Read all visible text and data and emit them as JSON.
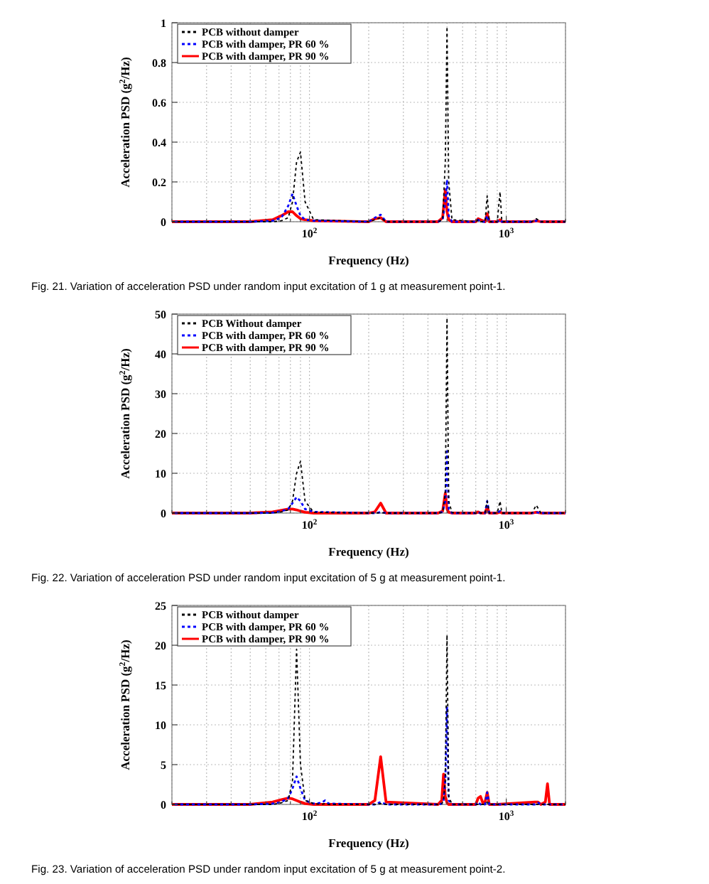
{
  "chart_data": [
    {
      "type": "line",
      "xlabel": "Frequency (Hz)",
      "ylabel": "Acceleration PSD (g$^{2}$/Hz)",
      "annotations": [
        "Fig. 21. Variation of acceleration PSD under random input excitation of 1 g at measurement point-1."
      ],
      "log": "x",
      "grid": true,
      "legend": "top left",
      "xlim": [
        20,
        2000
      ],
      "ylim": [
        0,
        1
      ],
      "xticks": [
        {
          "value": 20,
          "label": null
        },
        {
          "value": 30,
          "label": null
        },
        {
          "value": 40,
          "label": null
        },
        {
          "value": 50,
          "label": null
        },
        {
          "value": 60,
          "label": null
        },
        {
          "value": 70,
          "label": null
        },
        {
          "value": 80,
          "label": null
        },
        {
          "value": 90,
          "label": null
        },
        {
          "value": 100,
          "label": "10$^{2}$"
        },
        {
          "value": 200,
          "label": null
        },
        {
          "value": 300,
          "label": null
        },
        {
          "value": 400,
          "label": null
        },
        {
          "value": 500,
          "label": null
        },
        {
          "value": 600,
          "label": null
        },
        {
          "value": 700,
          "label": null
        },
        {
          "value": 800,
          "label": null
        },
        {
          "value": 900,
          "label": null
        },
        {
          "value": 1000,
          "label": "10$^{3}$"
        },
        {
          "value": 2000,
          "label": null
        }
      ],
      "yticks": [
        0,
        0.2,
        0.4,
        0.6,
        0.8,
        1
      ],
      "x": [
        20,
        50,
        65,
        72,
        78,
        82,
        86,
        90,
        95,
        105,
        200,
        215,
        230,
        245,
        450,
        475,
        490,
        500,
        510,
        530,
        700,
        720,
        740,
        780,
        800,
        820,
        900,
        930,
        950,
        1350,
        1420,
        1500,
        2000
      ],
      "series": [
        {
          "name": "PCB without damper",
          "color": "#000000",
          "line_style": "dashed",
          "values": [
            0,
            0,
            0,
            0.005,
            0.02,
            0.1,
            0.3,
            0.35,
            0.1,
            0.01,
            0,
            0.01,
            0.02,
            0,
            0,
            0.01,
            0.3,
            0.98,
            0.2,
            0.01,
            0,
            0.01,
            0,
            0,
            0.13,
            0,
            0,
            0.15,
            0,
            0,
            0.015,
            0,
            0
          ]
        },
        {
          "name": "PCB with damper, PR 60 %",
          "color": "#0000ff",
          "line_style": "dashed",
          "values": [
            0,
            0,
            0.005,
            0.02,
            0.08,
            0.14,
            0.08,
            0.03,
            0.01,
            0.005,
            0,
            0.02,
            0.035,
            0,
            0,
            0.01,
            0.1,
            0.21,
            0.03,
            0,
            0,
            0.01,
            0,
            0,
            0.03,
            0,
            0,
            0.01,
            0,
            0,
            0.005,
            0,
            0
          ]
        },
        {
          "name": "PCB with damper, PR 90 %",
          "color": "#ff0000",
          "line_style": "solid",
          "values": [
            0,
            0,
            0.01,
            0.03,
            0.05,
            0.05,
            0.03,
            0.015,
            0.01,
            0.005,
            0,
            0.015,
            0.02,
            0,
            0,
            0.02,
            0.16,
            0.05,
            0.01,
            0,
            0,
            0.015,
            0.01,
            0,
            0.04,
            0,
            0,
            0.01,
            0,
            0,
            0.005,
            0,
            0
          ]
        }
      ]
    },
    {
      "type": "line",
      "xlabel": "Frequency (Hz)",
      "ylabel": "Acceleration PSD (g$^{2}$/Hz)",
      "annotations": [
        "Fig. 22. Variation of acceleration PSD under random input excitation of 5 g at measurement point-1."
      ],
      "log": "x",
      "grid": true,
      "legend": "top left",
      "xlim": [
        20,
        2000
      ],
      "ylim": [
        0,
        50
      ],
      "xticks": [
        {
          "value": 20,
          "label": null
        },
        {
          "value": 30,
          "label": null
        },
        {
          "value": 40,
          "label": null
        },
        {
          "value": 50,
          "label": null
        },
        {
          "value": 60,
          "label": null
        },
        {
          "value": 70,
          "label": null
        },
        {
          "value": 80,
          "label": null
        },
        {
          "value": 90,
          "label": null
        },
        {
          "value": 100,
          "label": "10$^{2}$"
        },
        {
          "value": 200,
          "label": null
        },
        {
          "value": 300,
          "label": null
        },
        {
          "value": 400,
          "label": null
        },
        {
          "value": 500,
          "label": null
        },
        {
          "value": 600,
          "label": null
        },
        {
          "value": 700,
          "label": null
        },
        {
          "value": 800,
          "label": null
        },
        {
          "value": 900,
          "label": null
        },
        {
          "value": 1000,
          "label": "10$^{3}$"
        },
        {
          "value": 2000,
          "label": null
        }
      ],
      "yticks": [
        0,
        10,
        20,
        30,
        40,
        50
      ],
      "x": [
        20,
        50,
        65,
        72,
        78,
        82,
        86,
        90,
        95,
        105,
        200,
        215,
        230,
        245,
        450,
        475,
        490,
        500,
        510,
        530,
        700,
        720,
        740,
        780,
        800,
        820,
        900,
        930,
        950,
        1350,
        1420,
        1500,
        2000
      ],
      "series": [
        {
          "name": "PCB Without damper",
          "color": "#000000",
          "line_style": "dashed",
          "values": [
            0,
            0,
            0,
            0.3,
            0.8,
            3,
            10,
            13,
            3,
            0.2,
            0,
            0,
            0.1,
            0,
            0,
            0.2,
            5,
            49,
            3,
            0.1,
            0,
            0.2,
            0,
            0,
            3,
            0,
            0,
            3,
            0,
            0,
            2,
            0,
            0
          ]
        },
        {
          "name": "PCB with damper, PR 60 %",
          "color": "#0000ff",
          "line_style": "dashed",
          "values": [
            0,
            0,
            0.1,
            0.5,
            1,
            2.5,
            4,
            3,
            1,
            0.3,
            0,
            0,
            0.2,
            0,
            0,
            0.3,
            3,
            15.5,
            1,
            0,
            0,
            0.2,
            0,
            0,
            3,
            0,
            0,
            0.5,
            0,
            0,
            0.2,
            0,
            0
          ]
        },
        {
          "name": "PCB with damper, PR 90 %",
          "color": "#ff0000",
          "line_style": "solid",
          "values": [
            0,
            0,
            0.3,
            0.7,
            1,
            1,
            0.8,
            0.5,
            0.2,
            0,
            0,
            0.3,
            2.5,
            0,
            0,
            0.5,
            5,
            1,
            0.2,
            0,
            0,
            0.3,
            0,
            0,
            1.5,
            0,
            0,
            0.3,
            0,
            0,
            0.2,
            0,
            0
          ]
        }
      ]
    },
    {
      "type": "line",
      "xlabel": "Frequency (Hz)",
      "ylabel": "Acceleration PSD (g$^{2}$/Hz)",
      "annotations": [
        "Fig. 23. Variation of acceleration PSD under random input excitation of 5 g at measurement point-2."
      ],
      "log": "x",
      "grid": true,
      "legend": "top left",
      "xlim": [
        20,
        2000
      ],
      "ylim": [
        0,
        25
      ],
      "xticks": [
        {
          "value": 20,
          "label": null
        },
        {
          "value": 30,
          "label": null
        },
        {
          "value": 40,
          "label": null
        },
        {
          "value": 50,
          "label": null
        },
        {
          "value": 60,
          "label": null
        },
        {
          "value": 70,
          "label": null
        },
        {
          "value": 80,
          "label": null
        },
        {
          "value": 90,
          "label": null
        },
        {
          "value": 100,
          "label": "10$^{2}$"
        },
        {
          "value": 200,
          "label": null
        },
        {
          "value": 300,
          "label": null
        },
        {
          "value": 400,
          "label": null
        },
        {
          "value": 500,
          "label": null
        },
        {
          "value": 600,
          "label": null
        },
        {
          "value": 700,
          "label": null
        },
        {
          "value": 800,
          "label": null
        },
        {
          "value": 900,
          "label": null
        },
        {
          "value": 1000,
          "label": "10$^{3}$"
        },
        {
          "value": 2000,
          "label": null
        }
      ],
      "yticks": [
        0,
        5,
        10,
        15,
        20,
        25
      ],
      "x": [
        20,
        50,
        65,
        72,
        78,
        82,
        86,
        90,
        95,
        105,
        115,
        120,
        125,
        200,
        215,
        230,
        245,
        450,
        470,
        480,
        490,
        500,
        510,
        530,
        700,
        720,
        740,
        760,
        780,
        800,
        820,
        900,
        1400,
        1450,
        1500,
        1580,
        1620,
        1660,
        2000
      ],
      "series": [
        {
          "name": "PCB without damper",
          "color": "#000000",
          "line_style": "dashed",
          "values": [
            0,
            0,
            0,
            0.2,
            0.5,
            3,
            19.5,
            5,
            0.5,
            0.1,
            0,
            0.1,
            0,
            0,
            0,
            0.1,
            0,
            0,
            0.1,
            0.5,
            3,
            21.3,
            1,
            0,
            0,
            0,
            0,
            0,
            0,
            0.3,
            0,
            0,
            0,
            0,
            0,
            0,
            0,
            0,
            0
          ]
        },
        {
          "name": "PCB with damper, PR 60 %",
          "color": "#0000ff",
          "line_style": "dashed",
          "values": [
            0,
            0,
            0.1,
            0.3,
            0.8,
            2,
            3.5,
            2,
            0.5,
            0.1,
            0.2,
            0.5,
            0.1,
            0,
            0,
            0.3,
            0,
            0,
            0.1,
            0.5,
            3,
            12.3,
            0.5,
            0,
            0,
            0.3,
            0,
            0,
            0,
            1.5,
            0,
            0,
            0,
            0.2,
            0,
            0,
            0.1,
            0,
            0
          ]
        },
        {
          "name": "PCB with damper, PR 90 %",
          "color": "#ff0000",
          "line_style": "solid",
          "values": [
            0,
            0,
            0.3,
            0.6,
            0.8,
            0.7,
            0.5,
            0.3,
            0.1,
            0,
            0,
            0,
            0,
            0,
            0.5,
            6,
            0.3,
            0,
            0.5,
            3.8,
            1,
            0.2,
            0,
            0,
            0,
            0.8,
            1,
            0.2,
            0.3,
            1.5,
            0,
            0,
            0.3,
            0.3,
            0,
            0.3,
            2.6,
            0,
            0
          ]
        }
      ]
    }
  ]
}
